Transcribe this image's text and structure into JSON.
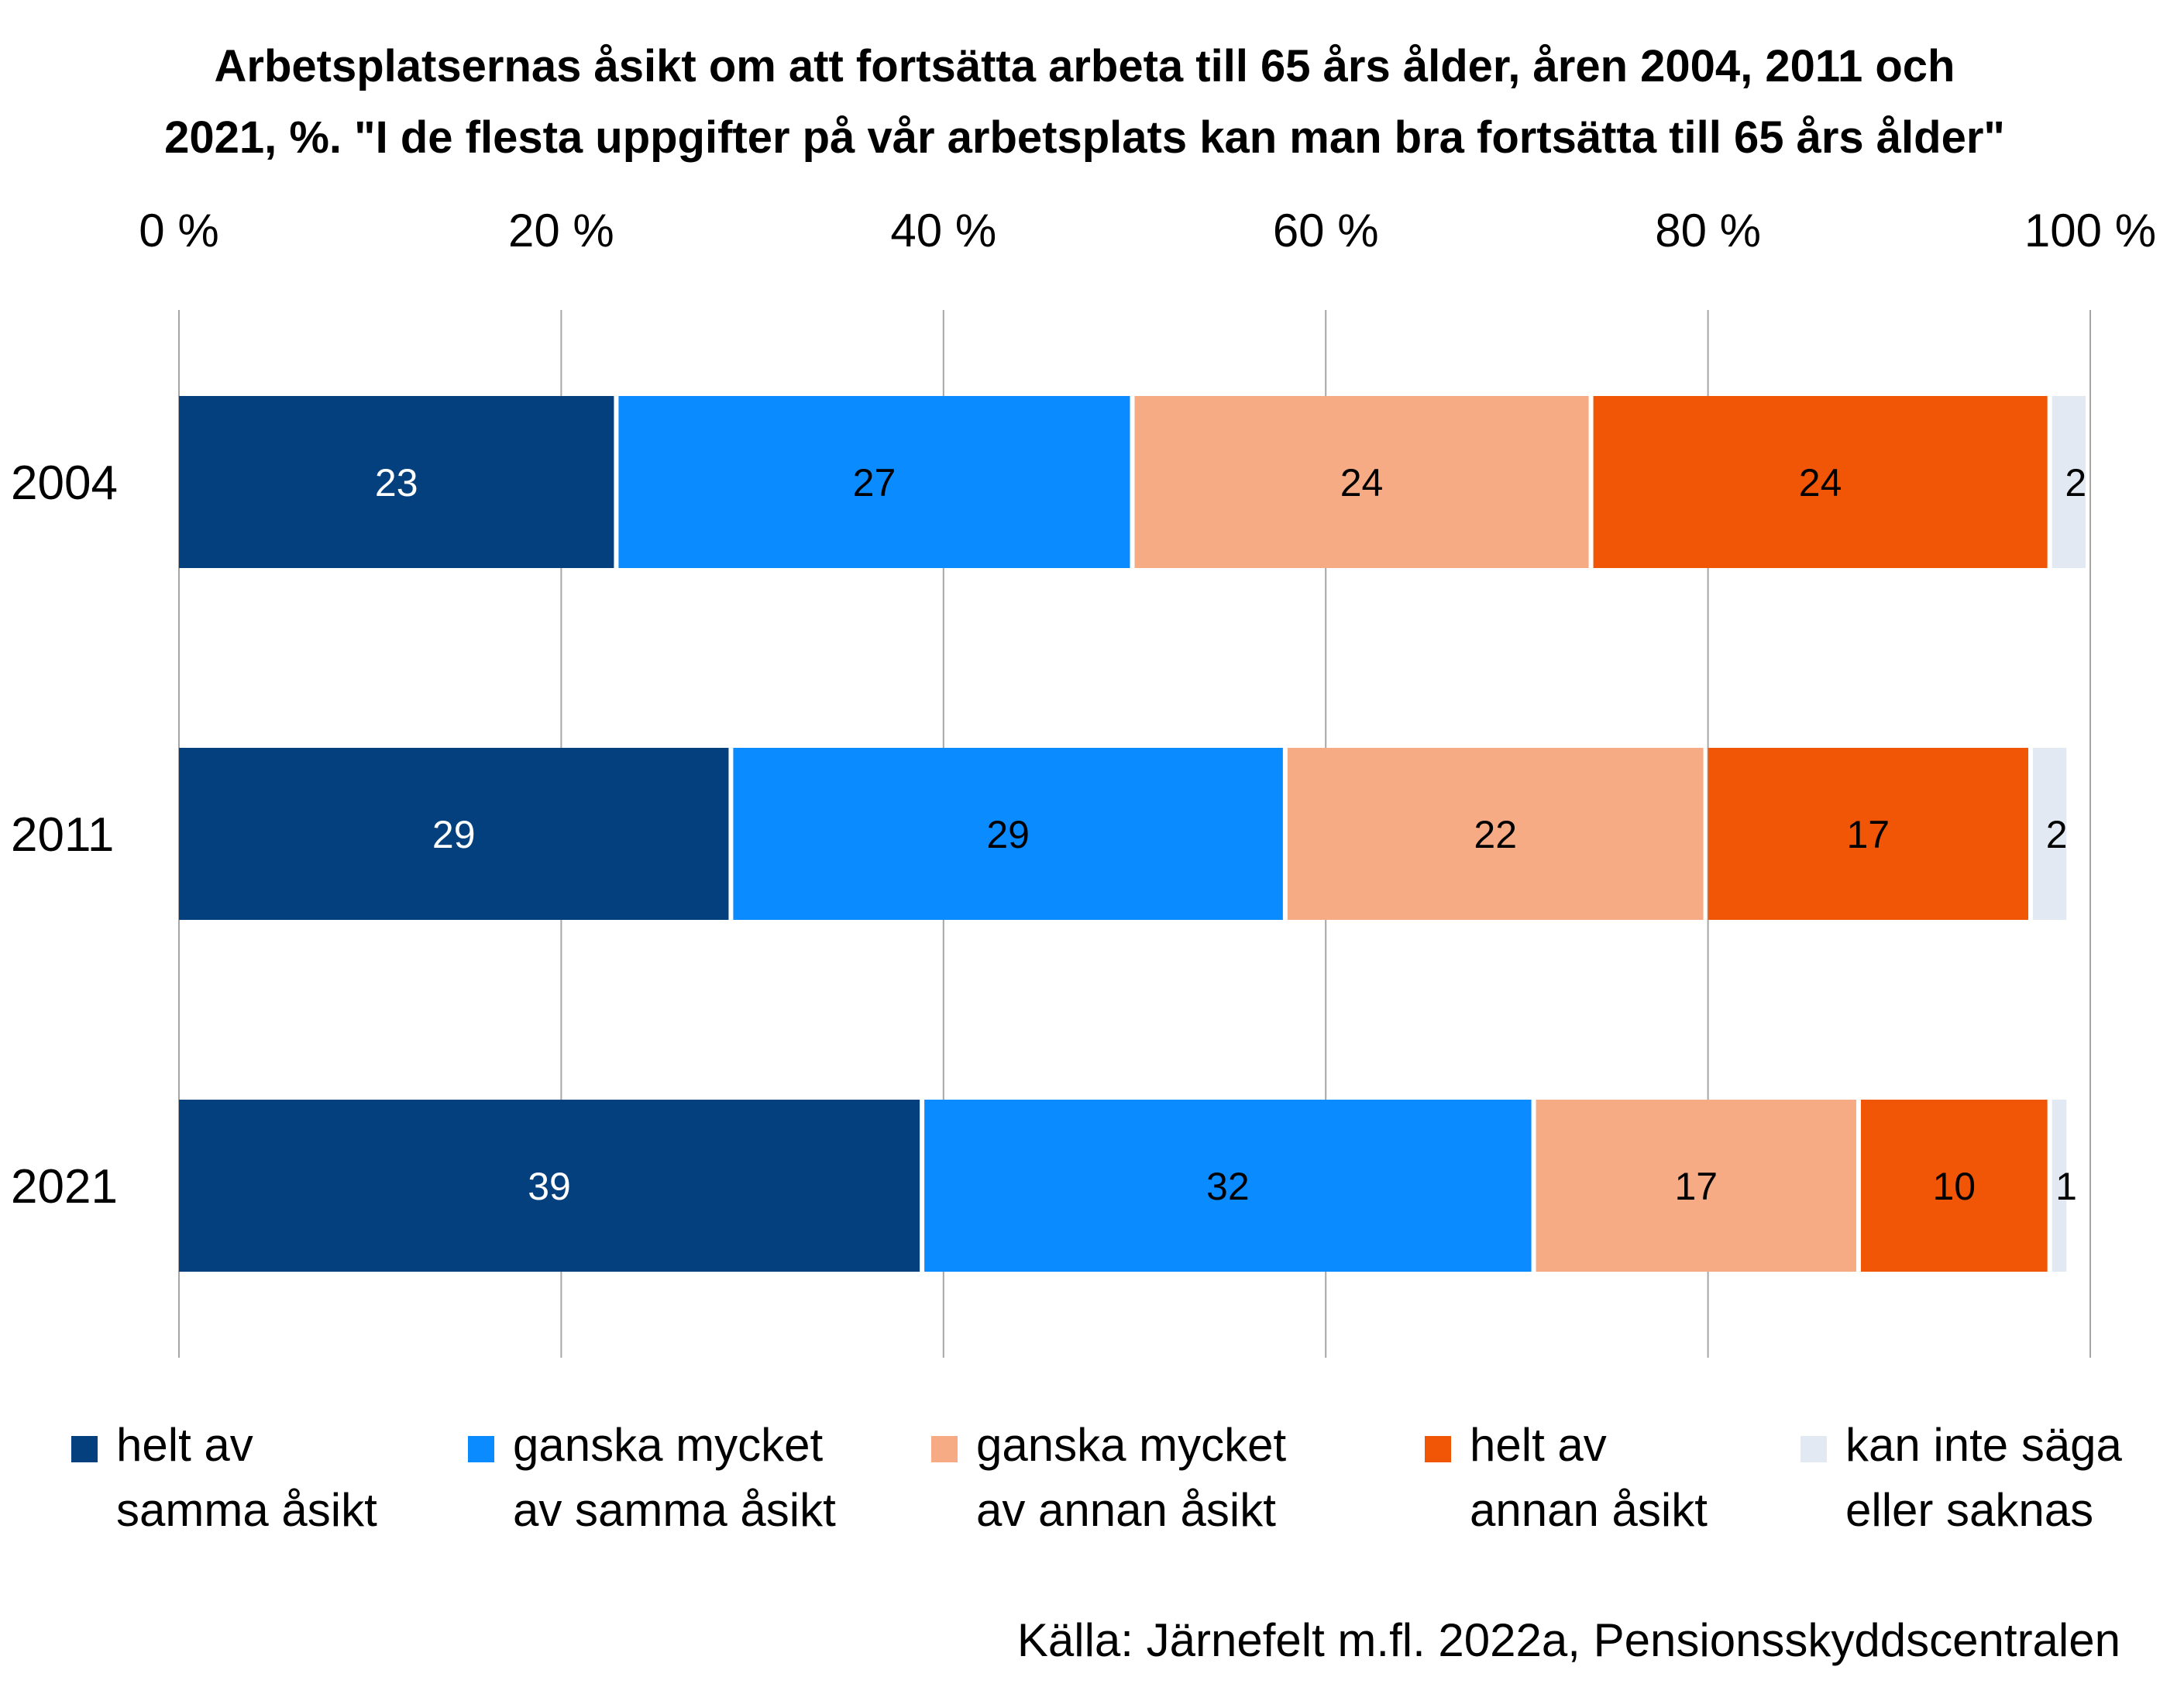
{
  "chart_data": {
    "type": "bar",
    "orientation": "horizontal-stacked-percent",
    "title": [
      "Arbetsplatsernas åsikt om att fortsätta arbeta till 65 års ålder, åren  2004, 2011 och",
      "2021, %. \"I de flesta uppgifter på vår arbetsplats kan man bra fortsätta till 65 års ålder\""
    ],
    "categories": [
      "2004",
      "2011",
      "2021"
    ],
    "xlim": [
      0,
      100
    ],
    "x_ticks": [
      "0 %",
      "20 %",
      "40 %",
      "60 %",
      "80 %",
      "100 %"
    ],
    "x_tick_values": [
      0,
      20,
      40,
      60,
      80,
      100
    ],
    "grid": true,
    "legend_position": "bottom",
    "series": [
      {
        "name": "helt av samma åsikt",
        "legend_lines": [
          "helt av",
          "samma åsikt"
        ],
        "color": "#03407D",
        "label_color": "#FFFFFF",
        "values": [
          23,
          29,
          39
        ],
        "labels": [
          "23",
          "29",
          "39"
        ]
      },
      {
        "name": "ganska mycket av samma åsikt",
        "legend_lines": [
          "ganska mycket",
          "av samma åsikt"
        ],
        "color": "#0A8BFF",
        "label_color": "#000000",
        "values": [
          27,
          29,
          32
        ],
        "labels": [
          "27",
          "29",
          "32"
        ]
      },
      {
        "name": "ganska mycket av annan åsikt",
        "legend_lines": [
          "ganska mycket",
          "av annan åsikt"
        ],
        "color": "#F6AB84",
        "label_color": "#000000",
        "values": [
          24,
          22,
          17
        ],
        "labels": [
          "24",
          "22",
          "17"
        ]
      },
      {
        "name": "helt av annan åsikt",
        "legend_lines": [
          "helt av",
          "annan åsikt"
        ],
        "color": "#F05606",
        "label_color": "#000000",
        "values": [
          24,
          17,
          10
        ],
        "labels": [
          "24",
          "17",
          "10"
        ]
      },
      {
        "name": "kan inte säga eller saknas",
        "legend_lines": [
          "kan inte säga",
          "eller saknas"
        ],
        "color": "#E3E9F2",
        "label_color": "#000000",
        "values": [
          2,
          2,
          1
        ],
        "labels": [
          "2",
          "2",
          "1"
        ]
      }
    ],
    "source": "Källa: Järnefelt m.fl. 2022a, Pensionsskyddscentralen"
  }
}
